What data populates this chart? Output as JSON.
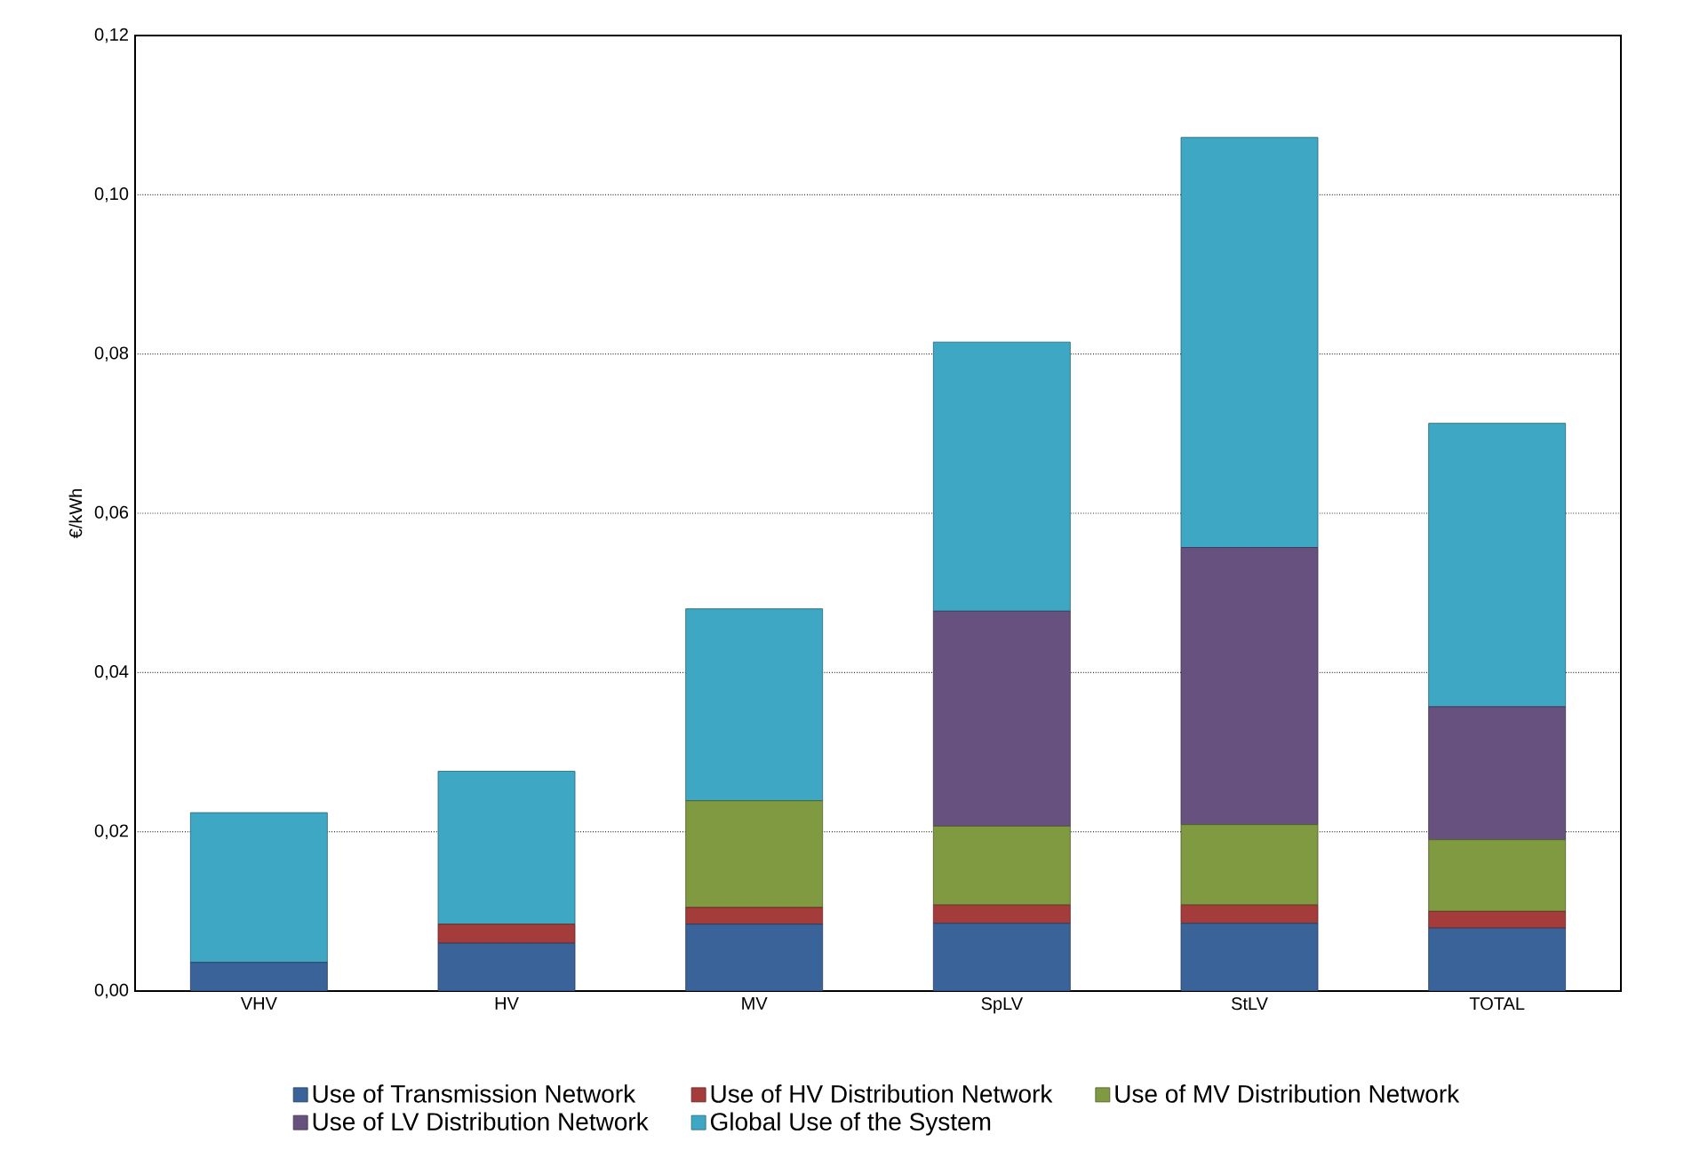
{
  "chart_data": {
    "type": "bar",
    "stacked": true,
    "ylabel": "€/kWh",
    "categories": [
      "VHV",
      "HV",
      "MV",
      "SpLV",
      "StLV",
      "TOTAL"
    ],
    "series": [
      {
        "name": "Use of Transmission Network",
        "color": "#3a6399",
        "values": [
          0.0036,
          0.006,
          0.0084,
          0.0085,
          0.0085,
          0.0079
        ]
      },
      {
        "name": "Use of HV Distribution Network",
        "color": "#a33c3a",
        "values": [
          null,
          0.0024,
          0.0021,
          0.0023,
          0.0023,
          0.0021
        ]
      },
      {
        "name": "Use of MV Distribution Network",
        "color": "#7f9a40",
        "values": [
          null,
          null,
          0.0134,
          0.0099,
          0.0101,
          0.009
        ]
      },
      {
        "name": "Use of LV Distribution Network",
        "color": "#67527f",
        "values": [
          null,
          null,
          null,
          0.027,
          0.0348,
          0.0167
        ]
      },
      {
        "name": "Global Use of the System",
        "color": "#3ea8c4",
        "values": [
          0.0188,
          0.0192,
          0.0241,
          0.0338,
          0.0515,
          0.0356
        ]
      }
    ],
    "ylim": [
      0,
      0.12
    ],
    "yticks": [
      {
        "value": 0,
        "label": "0,00"
      },
      {
        "value": 0.02,
        "label": "0,02"
      },
      {
        "value": 0.04,
        "label": "0,04"
      },
      {
        "value": 0.06,
        "label": "0,06"
      },
      {
        "value": 0.08,
        "label": "0,08"
      },
      {
        "value": 0.1,
        "label": "0,10"
      },
      {
        "value": 0.12,
        "label": "0,12"
      }
    ],
    "grid": "y",
    "legend": "bottom"
  }
}
